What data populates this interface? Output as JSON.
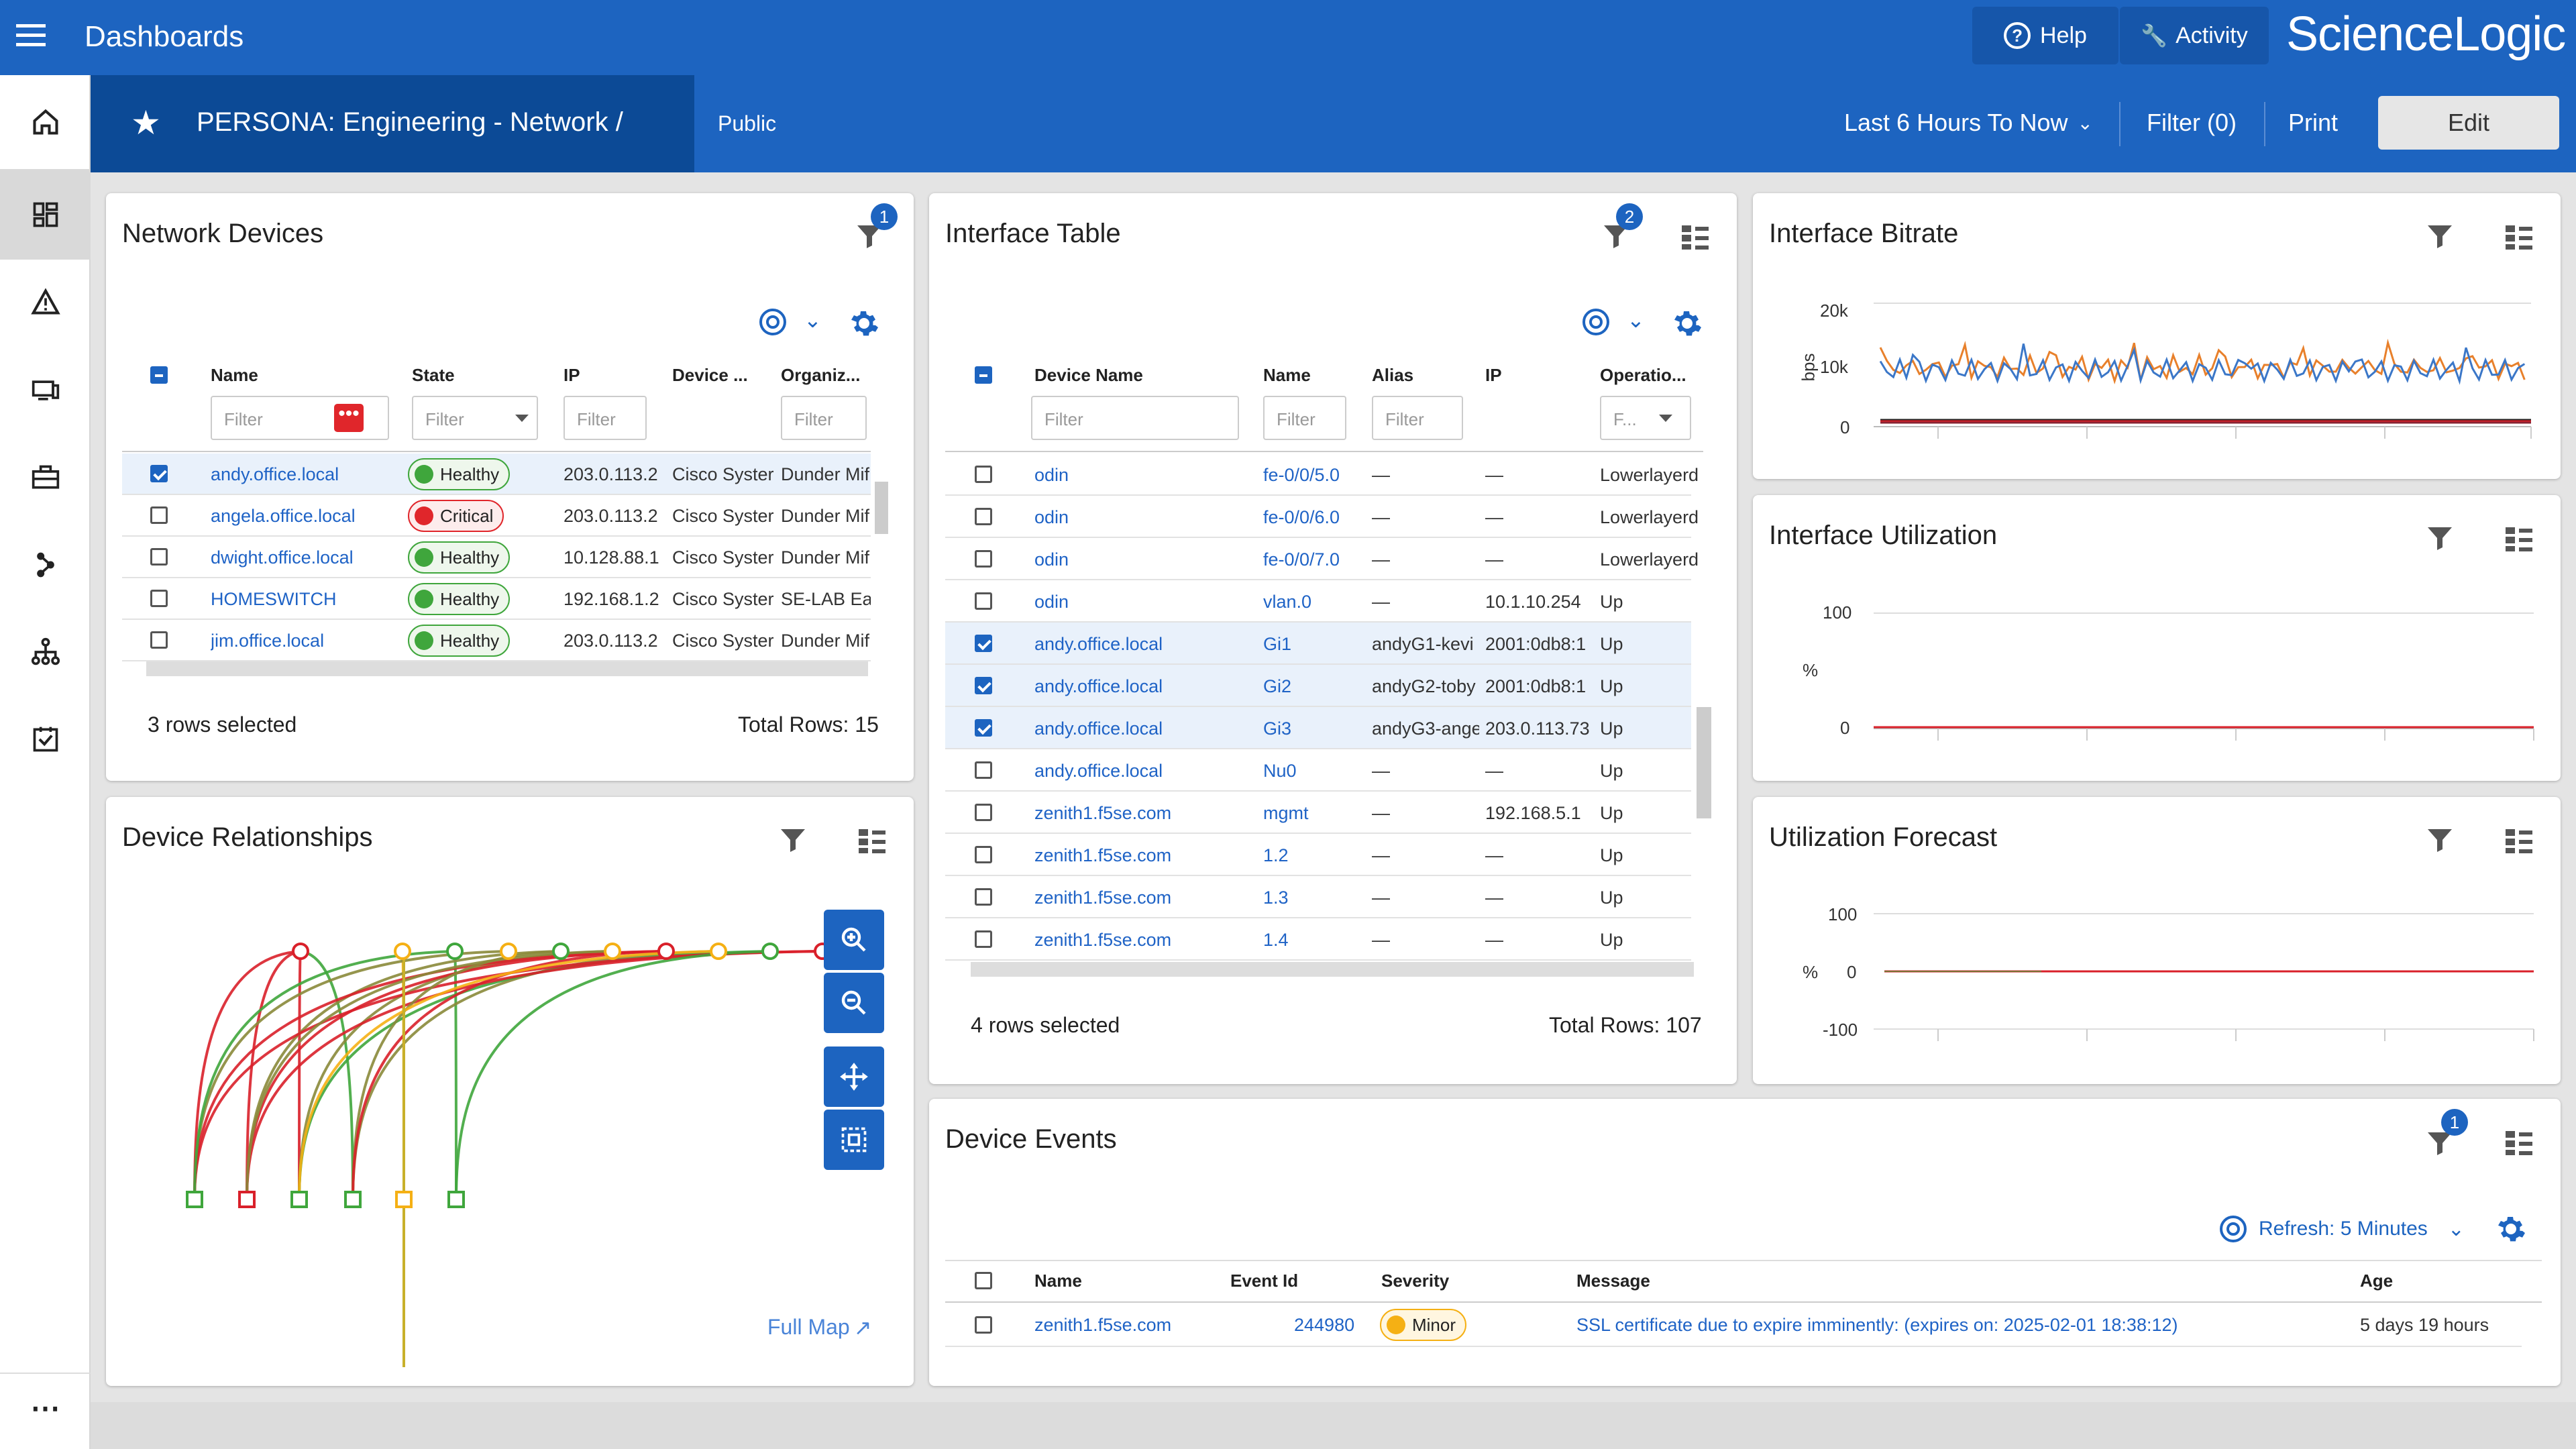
{
  "topbar": {
    "title": "Dashboards",
    "help": "Help",
    "activity": "Activity",
    "logo": "ScienceLogic"
  },
  "subbar": {
    "dashboard_name": "PERSONA: Engineering - Network /",
    "visibility": "Public",
    "time_range": "Last 6 Hours To Now",
    "filter": "Filter (0)",
    "print": "Print",
    "edit": "Edit"
  },
  "sidebar": {
    "items": [
      "home-icon",
      "dashboards-icon",
      "alert-icon",
      "devices-icon",
      "toolbox-icon",
      "topology-icon",
      "org-chart-icon",
      "checklist-icon",
      "more-icon"
    ]
  },
  "network_devices": {
    "title": "Network Devices",
    "filter_badge": "1",
    "columns": [
      "Name",
      "State",
      "IP",
      "Device ...",
      "Organiz..."
    ],
    "filter_placeholder": "Filter",
    "rows": [
      {
        "checked": true,
        "name": "andy.office.local",
        "state": "Healthy",
        "ip": "203.0.113.2",
        "device": "Cisco Syster",
        "org": "Dunder Mif"
      },
      {
        "checked": false,
        "name": "angela.office.local",
        "state": "Critical",
        "ip": "203.0.113.2",
        "device": "Cisco Syster",
        "org": "Dunder Mif"
      },
      {
        "checked": false,
        "name": "dwight.office.local",
        "state": "Healthy",
        "ip": "10.128.88.1",
        "device": "Cisco Syster",
        "org": "Dunder Mif"
      },
      {
        "checked": false,
        "name": "HOMESWITCH",
        "state": "Healthy",
        "ip": "192.168.1.2",
        "device": "Cisco Syster",
        "org": "SE-LAB Ear"
      },
      {
        "checked": false,
        "name": "jim.office.local",
        "state": "Healthy",
        "ip": "203.0.113.2",
        "device": "Cisco Syster",
        "org": "Dunder Mif"
      }
    ],
    "footer_selected": "3 rows selected",
    "footer_total": "Total Rows: 15"
  },
  "interface_table": {
    "title": "Interface Table",
    "filter_badge": "2",
    "columns": [
      "Device Name",
      "Name",
      "Alias",
      "IP",
      "Operatio..."
    ],
    "filter_placeholder": "Filter",
    "op_filter": "F...",
    "rows": [
      {
        "checked": false,
        "device": "odin",
        "name": "fe-0/0/5.0",
        "alias": "—",
        "ip": "—",
        "op": "Lowerlayerd"
      },
      {
        "checked": false,
        "device": "odin",
        "name": "fe-0/0/6.0",
        "alias": "—",
        "ip": "—",
        "op": "Lowerlayerd"
      },
      {
        "checked": false,
        "device": "odin",
        "name": "fe-0/0/7.0",
        "alias": "—",
        "ip": "—",
        "op": "Lowerlayerd"
      },
      {
        "checked": false,
        "device": "odin",
        "name": "vlan.0",
        "alias": "—",
        "ip": "10.1.10.254",
        "op": "Up"
      },
      {
        "checked": true,
        "device": "andy.office.local",
        "name": "Gi1",
        "alias": "andyG1-kevi",
        "ip": "2001:0db8:1",
        "op": "Up"
      },
      {
        "checked": true,
        "device": "andy.office.local",
        "name": "Gi2",
        "alias": "andyG2-toby",
        "ip": "2001:0db8:1",
        "op": "Up"
      },
      {
        "checked": true,
        "device": "andy.office.local",
        "name": "Gi3",
        "alias": "andyG3-ange",
        "ip": "203.0.113.73",
        "op": "Up"
      },
      {
        "checked": false,
        "device": "andy.office.local",
        "name": "Nu0",
        "alias": "—",
        "ip": "—",
        "op": "Up"
      },
      {
        "checked": false,
        "device": "zenith1.f5se.com",
        "name": "mgmt",
        "alias": "—",
        "ip": "192.168.5.1",
        "op": "Up"
      },
      {
        "checked": false,
        "device": "zenith1.f5se.com",
        "name": "1.2",
        "alias": "—",
        "ip": "—",
        "op": "Up"
      },
      {
        "checked": false,
        "device": "zenith1.f5se.com",
        "name": "1.3",
        "alias": "—",
        "ip": "—",
        "op": "Up"
      },
      {
        "checked": false,
        "device": "zenith1.f5se.com",
        "name": "1.4",
        "alias": "—",
        "ip": "—",
        "op": "Up"
      }
    ],
    "footer_selected": "4 rows selected",
    "footer_total": "Total Rows: 107"
  },
  "device_relationships": {
    "title": "Device Relationships",
    "full_map": "Full Map"
  },
  "bitrate": {
    "title": "Interface Bitrate",
    "ylabel": "bps",
    "yticks": [
      "20k",
      "10k",
      "0"
    ]
  },
  "utilization": {
    "title": "Interface Utilization",
    "ylabel": "%",
    "yticks": [
      "100",
      "0"
    ]
  },
  "forecast": {
    "title": "Utilization Forecast",
    "ylabel": "%",
    "yticks": [
      "100",
      "0",
      "-100"
    ]
  },
  "device_events": {
    "title": "Device Events",
    "filter_badge": "1",
    "refresh": "Refresh: 5 Minutes",
    "columns": [
      "Name",
      "Event Id",
      "Severity",
      "Message",
      "Age"
    ],
    "rows": [
      {
        "name": "zenith1.f5se.com",
        "event_id": "244980",
        "severity": "Minor",
        "message": "SSL certificate due to expire imminently: (expires on: 2025-02-01 18:38:12)",
        "age": "5 days 19 hours"
      }
    ]
  },
  "colors": {
    "primary": "#1d64c0",
    "dark": "#0c4a96",
    "healthy": "#3fa63c",
    "critical": "#e0262b",
    "minor": "#f5b014",
    "orange": "#e8802b",
    "line_red": "#d9202a"
  }
}
